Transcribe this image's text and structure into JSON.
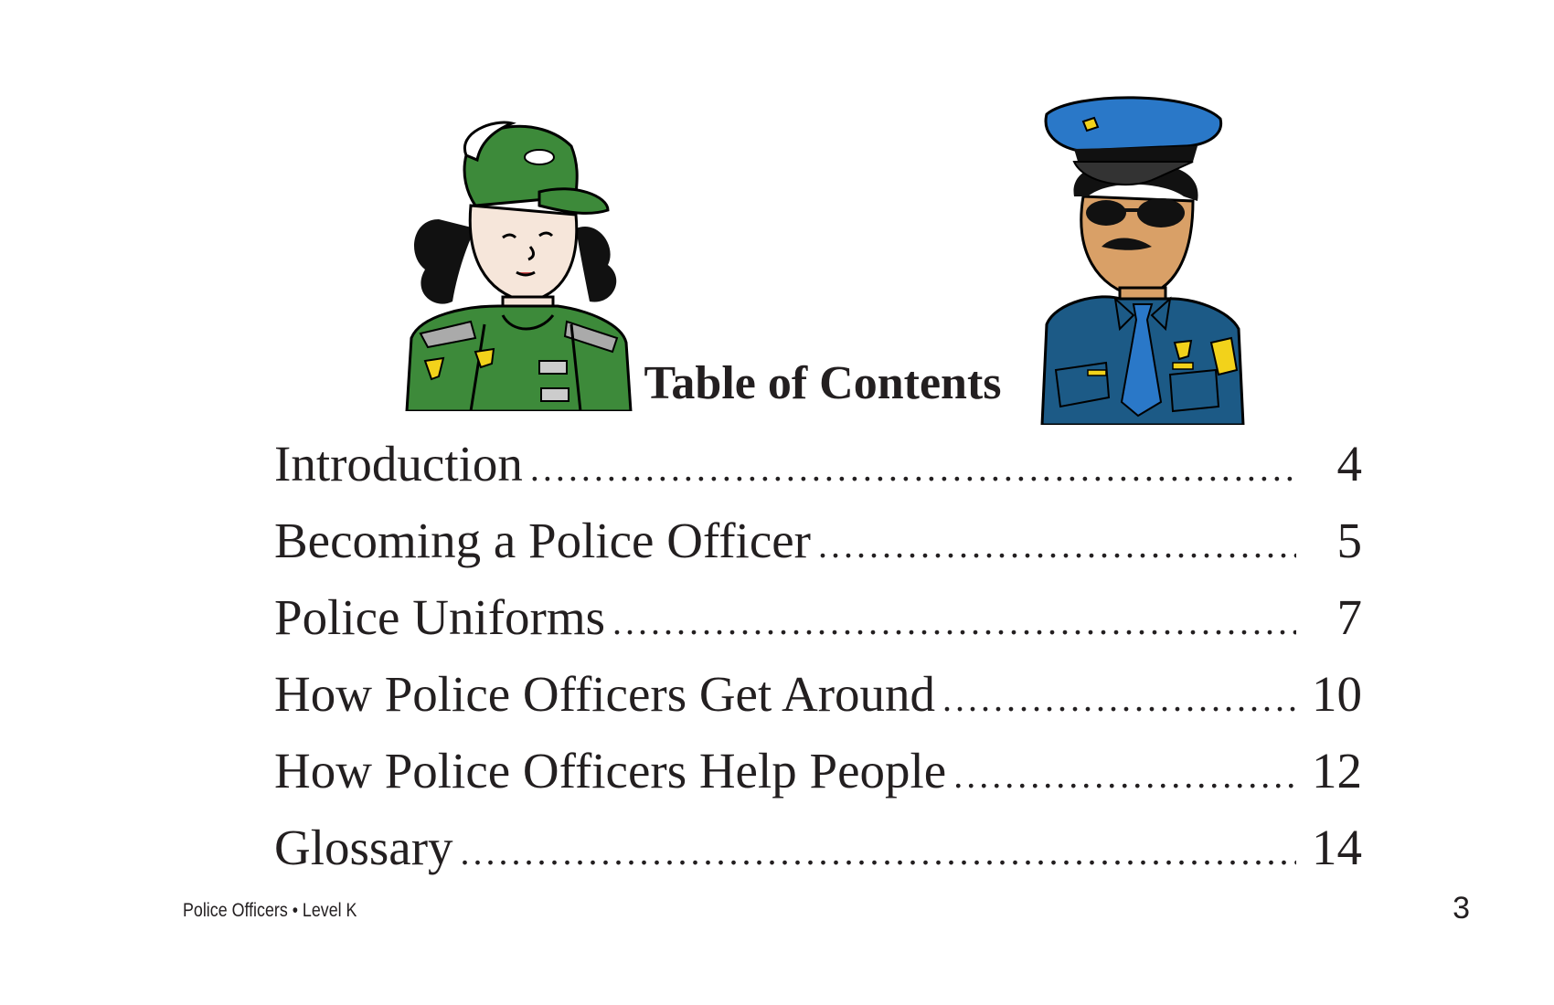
{
  "title": "Table of Contents",
  "toc": [
    {
      "label": "Introduction",
      "page": "4"
    },
    {
      "label": "Becoming a Police Officer",
      "page": "5"
    },
    {
      "label": "Police Uniforms",
      "page": "7"
    },
    {
      "label": "How Police Officers Get Around",
      "page": "10"
    },
    {
      "label": "How Police Officers Help People",
      "page": "12"
    },
    {
      "label": "Glossary",
      "page": "14"
    }
  ],
  "footer": {
    "book": "Police Officers • Level K",
    "page_number": "3"
  },
  "illustrations": {
    "left": "female-police-officer-green-uniform",
    "right": "male-police-officer-blue-uniform"
  },
  "colors": {
    "green_uniform": "#3d8a3a",
    "blue_cap": "#2a78c8",
    "blue_uniform": "#1c5a86",
    "badge_gold": "#f2d21b"
  }
}
